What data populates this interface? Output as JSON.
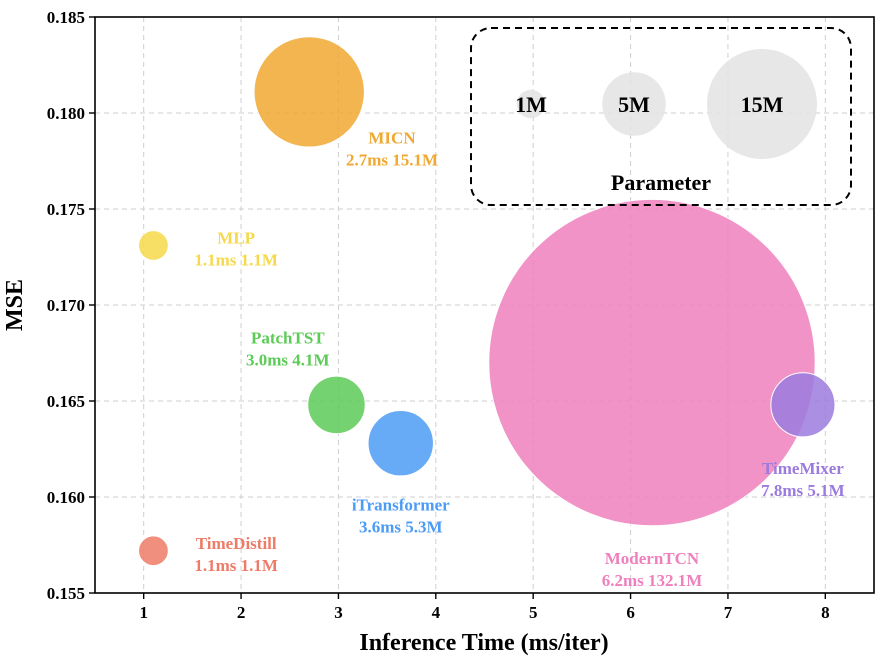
{
  "chart_data": {
    "type": "scatter",
    "title": "",
    "xlabel": "Inference Time (ms/iter)",
    "ylabel": "MSE",
    "xlim": [
      0.5,
      8.5
    ],
    "ylim": [
      0.155,
      0.185
    ],
    "x_ticks": [
      1,
      2,
      3,
      4,
      5,
      6,
      7,
      8
    ],
    "y_ticks": [
      "0.155",
      "0.160",
      "0.165",
      "0.170",
      "0.175",
      "0.180",
      "0.185"
    ],
    "grid": true,
    "points": [
      {
        "name": "MICN",
        "detail": "2.7ms 15.1M",
        "x": 2.7,
        "y": 0.1811,
        "params_m": 15.1,
        "color": "#F0A830",
        "label_dx": 0.85,
        "label_dy": -0.0027,
        "anchor": "middle"
      },
      {
        "name": "MLP",
        "detail": "1.1ms 1.1M",
        "x": 1.1,
        "y": 0.1731,
        "params_m": 1.1,
        "color": "#F6D94A",
        "label_dx": 0.85,
        "label_dy": 0.0001,
        "anchor": "middle"
      },
      {
        "name": "PatchTST",
        "detail": "3.0ms 4.1M",
        "x": 2.98,
        "y": 0.1648,
        "params_m": 4.1,
        "color": "#5CCB57",
        "label_dx": -0.5,
        "label_dy": 0.0032,
        "anchor": "middle"
      },
      {
        "name": "iTransformer",
        "detail": "3.6ms 5.3M",
        "x": 3.64,
        "y": 0.1628,
        "params_m": 5.3,
        "color": "#4C9BF5",
        "label_dx": 0.0,
        "label_dy": -0.0035,
        "anchor": "middle"
      },
      {
        "name": "ModernTCN",
        "detail": "6.2ms 132.1M",
        "x": 6.22,
        "y": 0.167,
        "params_m": 132.1,
        "color": "#EF80BD",
        "label_dx": 0.0,
        "label_dy": -0.0105,
        "anchor": "middle"
      },
      {
        "name": "TimeMixer",
        "detail": "7.8ms 5.1M",
        "x": 7.77,
        "y": 0.1648,
        "params_m": 5.1,
        "color": "#9B7BDE",
        "label_dx": 0.0,
        "label_dy": -0.0036,
        "anchor": "middle"
      },
      {
        "name": "TimeDistill",
        "detail": "1.1ms 1.1M",
        "x": 1.1,
        "y": 0.1572,
        "params_m": 1.1,
        "color": "#EE7B68",
        "label_dx": 0.85,
        "label_dy": 0.0001,
        "anchor": "middle"
      }
    ],
    "legend": {
      "title": "Parameter",
      "placement": "top-right",
      "sizes": [
        {
          "label": "1M",
          "params_m": 1
        },
        {
          "label": "5M",
          "params_m": 5
        },
        {
          "label": "15M",
          "params_m": 15
        }
      ]
    }
  }
}
